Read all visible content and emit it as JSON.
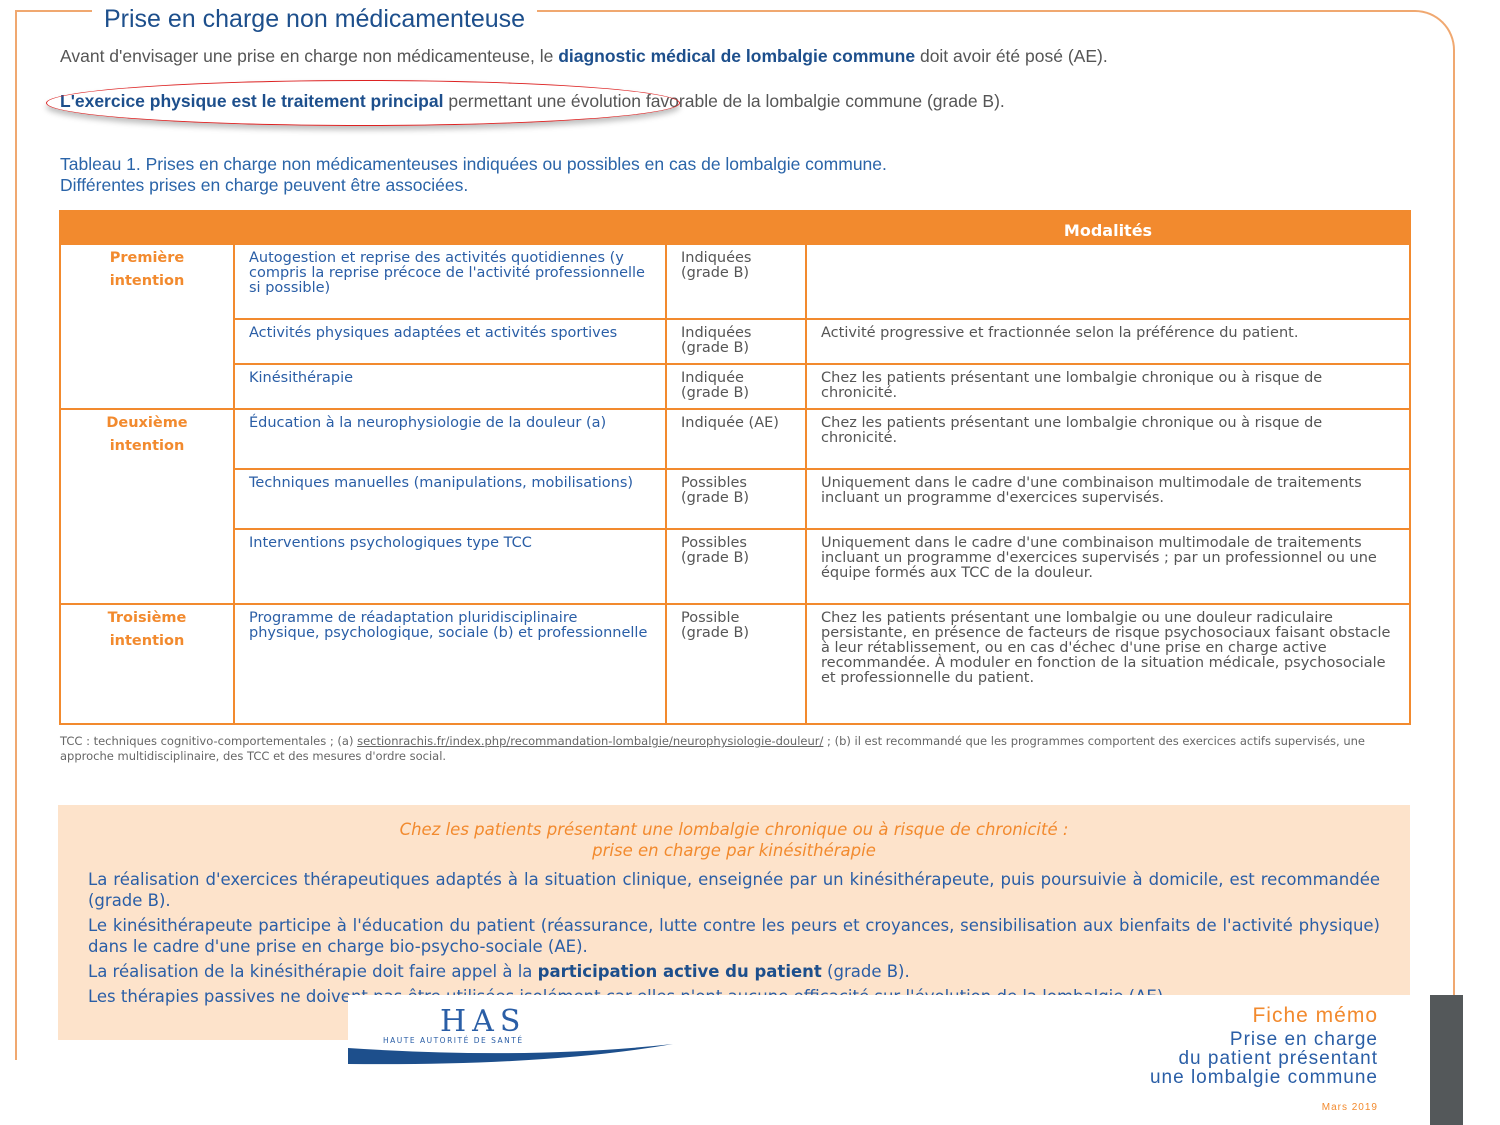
{
  "section_title": "Prise en charge non médicamenteuse",
  "intro": {
    "p1_a": "Avant d'envisager une prise en charge non médicamenteuse, le ",
    "p1_b": "diagnostic médical de lombalgie commune",
    "p1_c": " doit avoir été posé (AE).",
    "p2_a": "L'exercice physique est le traitement principal",
    "p2_b": " permettant une évolution favorable de la lombalgie commune (grade B)."
  },
  "caption": [
    "Tableau 1. Prises en charge non médicamenteuses indiquées ou possibles en cas de lombalgie commune.",
    "Différentes prises en charge peuvent être associées."
  ],
  "table": {
    "header": "Modalités",
    "groups": [
      {
        "label": "Première intention",
        "rows": [
          {
            "treatment": "Autogestion et reprise des activités quotidiennes (y compris la reprise précoce de l'activité professionnelle si possible)",
            "status": "Indiquées (grade B)",
            "modalities": ""
          },
          {
            "treatment": "Activités physiques adaptées et activités sportives",
            "status": "Indiquées (grade B)",
            "modalities": "Activité progressive et fractionnée selon la préférence du patient."
          },
          {
            "treatment": "Kinésithérapie",
            "status": "Indiquée (grade B)",
            "modalities": "Chez les patients présentant une lombalgie chronique ou à risque de chronicité."
          }
        ]
      },
      {
        "label": "Deuxième intention",
        "rows": [
          {
            "treatment": "Éducation à la neurophysiologie de la douleur (a)",
            "status": "Indiquée (AE)",
            "modalities": "Chez les patients présentant une lombalgie chronique ou à risque de chronicité."
          },
          {
            "treatment": "Techniques manuelles (manipulations, mobilisations)",
            "status": "Possibles (grade B)",
            "modalities": "Uniquement dans le cadre d'une combinaison multimodale de traitements incluant un programme d'exercices supervisés."
          },
          {
            "treatment": "Interventions psychologiques type TCC",
            "status": "Possibles (grade B)",
            "modalities": "Uniquement dans le cadre d'une combinaison multimodale de traitements incluant un programme d'exercices supervisés ; par un professionnel ou une équipe formés aux TCC de la douleur."
          }
        ]
      },
      {
        "label": "Troisième intention",
        "rows": [
          {
            "treatment": "Programme de réadaptation pluridisciplinaire physique, psychologique, sociale (b) et professionnelle",
            "status": "Possible (grade B)",
            "modalities": "Chez les patients présentant une lombalgie ou une douleur radiculaire persistante, en présence de facteurs de risque psychosociaux faisant obstacle à leur rétablissement, ou en cas d'échec d'une prise en charge active recommandée. À moduler en fonction de la situation médicale, psychosociale et professionnelle du patient."
          }
        ]
      }
    ]
  },
  "footnote": {
    "a": "TCC : techniques cognitivo-comportementales ; (a) ",
    "link": "sectionrachis.fr/index.php/recommandation-lombalgie/neurophysiologie-douleur/",
    "b": " ; (b) il est recommandé que les programmes comportent des exercices actifs supervisés, une approche multidisciplinaire, des TCC et des mesures d'ordre social."
  },
  "box": {
    "title1": "Chez les patients présentant une lombalgie chronique ou à risque de chronicité :",
    "title2": "prise en charge par kinésithérapie",
    "p1": "La réalisation d'exercices thérapeutiques adaptés à la situation clinique, enseignée par un kinésithérapeute, puis poursuivie à domicile, est recommandée (grade B).",
    "p2": "Le kinésithérapeute participe à l'éducation du patient (réassurance, lutte contre les peurs et croyances, sensibilisation aux bienfaits de l'activité physique) dans le cadre d'une prise en charge bio-psycho-sociale (AE).",
    "p3_a": "La réalisation de la kinésithérapie doit faire appel à la ",
    "p3_b": "participation active du patient",
    "p3_c": " (grade B).",
    "p4": "Les thérapies passives ne doivent pas être utilisées isolément car elles n'ont aucune efficacité sur l'évolution de la lombalgie (AE)."
  },
  "footer": {
    "logo": "HAS",
    "logo_sub": "HAUTE AUTORITÉ DE SANTÉ",
    "kicker": "Fiche mémo",
    "title": [
      "Prise en charge",
      "du patient présentant",
      "une lombalgie commune"
    ],
    "date": "Mars 2019"
  },
  "colors": {
    "orange": "#f28a2e",
    "blue": "#1d4f8c",
    "annotation": "#dd2222"
  }
}
